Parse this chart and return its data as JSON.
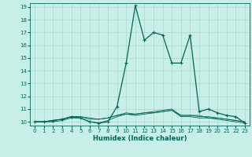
{
  "title": "",
  "xlabel": "Humidex (Indice chaleur)",
  "bg_color": "#c8eee8",
  "grid_color": "#aad8cc",
  "line_color": "#006655",
  "xlim": [
    -0.5,
    23.5
  ],
  "ylim": [
    9.7,
    19.3
  ],
  "xticks": [
    0,
    1,
    2,
    3,
    4,
    5,
    6,
    7,
    8,
    9,
    10,
    11,
    12,
    13,
    14,
    15,
    16,
    17,
    18,
    19,
    20,
    21,
    22,
    23
  ],
  "yticks": [
    10,
    11,
    12,
    13,
    14,
    15,
    16,
    17,
    18,
    19
  ],
  "series_main": [
    10,
    10,
    10.1,
    10.2,
    10.4,
    10.3,
    10.0,
    9.9,
    10.0,
    11.2,
    14.6,
    19.1,
    16.4,
    17.0,
    16.8,
    14.6,
    14.6,
    16.8,
    10.8,
    11.0,
    10.7,
    10.5,
    10.4,
    9.9
  ],
  "series_flat1": [
    10,
    10,
    10.1,
    10.2,
    10.4,
    10.4,
    10.3,
    10.2,
    10.3,
    10.5,
    10.6,
    10.6,
    10.7,
    10.7,
    10.8,
    10.9,
    10.5,
    10.5,
    10.4,
    10.4,
    10.3,
    10.2,
    10.1,
    10.0
  ],
  "series_flat2": [
    10,
    10,
    10.1,
    10.2,
    10.4,
    10.4,
    10.2,
    10.2,
    10.3,
    10.5,
    10.7,
    10.6,
    10.7,
    10.8,
    10.9,
    11.0,
    10.5,
    10.5,
    10.5,
    10.3,
    10.3,
    10.2,
    10.1,
    10.0
  ],
  "series_flat3": [
    10,
    10,
    10.0,
    10.1,
    10.3,
    10.3,
    10.0,
    9.9,
    10.1,
    10.4,
    10.6,
    10.5,
    10.6,
    10.7,
    10.8,
    10.9,
    10.4,
    10.4,
    10.3,
    10.3,
    10.2,
    10.1,
    10.0,
    9.9
  ]
}
